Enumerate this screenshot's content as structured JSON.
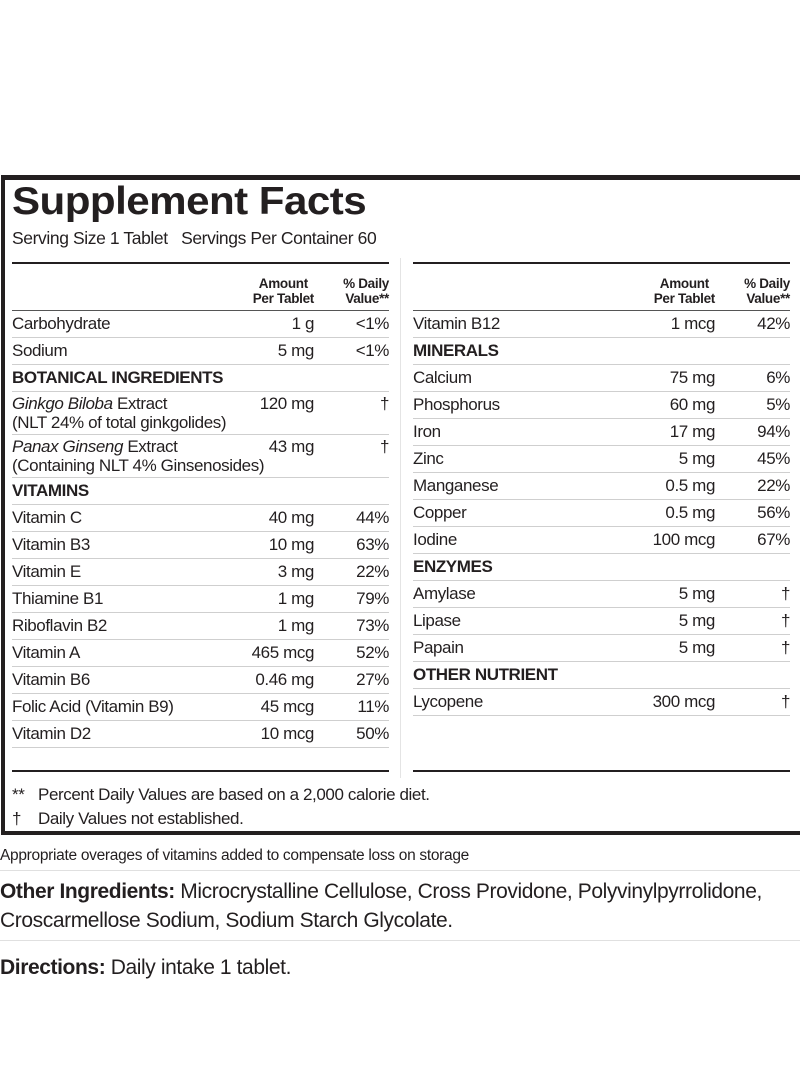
{
  "title": "Supplement Facts",
  "serving": "Serving Size 1 Tablet   Servings Per Container 60",
  "header": {
    "amount_l1": "Amount",
    "amount_l2": "Per Tablet",
    "dv_l1": "% Daily",
    "dv_l2": "Value**"
  },
  "left_rows": [
    {
      "name": "Carbohydrate",
      "amount": "1 g",
      "dv": "<1%"
    },
    {
      "name": "Sodium",
      "amount": "5 mg",
      "dv": "<1%"
    },
    {
      "section": "BOTANICAL INGREDIENTS"
    },
    {
      "name_italic": "Ginkgo Biloba",
      "name": " Extract",
      "sub": "(NLT 24% of total ginkgolides)",
      "amount": "120 mg",
      "dv": "†"
    },
    {
      "name_italic": "Panax Ginseng",
      "name": " Extract",
      "sub": "(Containing NLT 4% Ginsenosides)",
      "amount": "43 mg",
      "dv": "†"
    },
    {
      "section": "VITAMINS"
    },
    {
      "name": "Vitamin C",
      "amount": "40 mg",
      "dv": "44%"
    },
    {
      "name": "Vitamin B3",
      "amount": "10 mg",
      "dv": "63%"
    },
    {
      "name": "Vitamin E",
      "amount": "3 mg",
      "dv": "22%"
    },
    {
      "name": "Thiamine B1",
      "amount": "1 mg",
      "dv": "79%"
    },
    {
      "name": "Riboflavin B2",
      "amount": "1 mg",
      "dv": "73%"
    },
    {
      "name": "Vitamin A",
      "amount": "465 mcg",
      "dv": "52%"
    },
    {
      "name": "Vitamin B6",
      "amount": "0.46 mg",
      "dv": "27%"
    },
    {
      "name": "Folic Acid (Vitamin B9)",
      "amount": "45 mcg",
      "dv": "11%"
    },
    {
      "name": "Vitamin D2",
      "amount": "10 mcg",
      "dv": "50%"
    }
  ],
  "right_rows": [
    {
      "name": "Vitamin B12",
      "amount": "1 mcg",
      "dv": "42%"
    },
    {
      "section": "MINERALS"
    },
    {
      "name": "Calcium",
      "amount": "75 mg",
      "dv": "6%"
    },
    {
      "name": "Phosphorus",
      "amount": "60 mg",
      "dv": "5%"
    },
    {
      "name": "Iron",
      "amount": "17 mg",
      "dv": "94%"
    },
    {
      "name": "Zinc",
      "amount": "5 mg",
      "dv": "45%"
    },
    {
      "name": "Manganese",
      "amount": "0.5 mg",
      "dv": "22%"
    },
    {
      "name": "Copper",
      "amount": "0.5 mg",
      "dv": "56%"
    },
    {
      "name": "Iodine",
      "amount": "100 mcg",
      "dv": "67%"
    },
    {
      "section": "ENZYMES"
    },
    {
      "name": "Amylase",
      "amount": "5 mg",
      "dv": "†"
    },
    {
      "name": "Lipase",
      "amount": "5 mg",
      "dv": "†"
    },
    {
      "name": "Papain",
      "amount": "5 mg",
      "dv": "†"
    },
    {
      "section": "OTHER NUTRIENT"
    },
    {
      "name": "Lycopene",
      "amount": "300 mcg",
      "dv": "†"
    }
  ],
  "footnotes": [
    {
      "sym": "**",
      "text": "Percent Daily Values are based on a 2,000 calorie diet."
    },
    {
      "sym": "†",
      "text": "Daily Values not established."
    }
  ],
  "overage": "Appropriate overages of vitamins added to compensate loss on storage",
  "other": {
    "label": "Other Ingredients:",
    "text": " Microcrystalline Cellulose, Cross Providone, Polyvinylpyrrolidone, Croscarmellose Sodium, Sodium Starch Glycolate."
  },
  "directions": {
    "label": "Directions:",
    "text": " Daily intake 1 tablet."
  }
}
